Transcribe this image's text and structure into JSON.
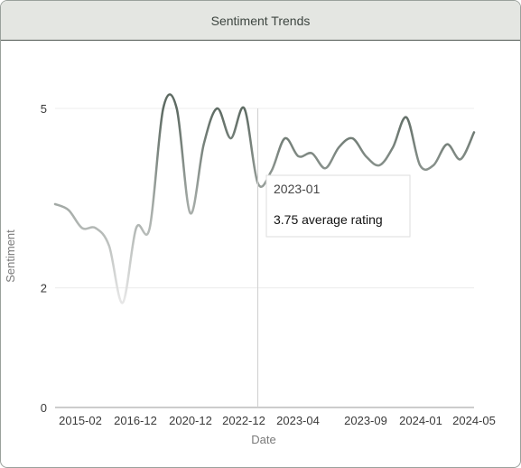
{
  "card": {
    "title": "Sentiment Trends"
  },
  "chart_data": {
    "type": "line",
    "title": "Sentiment Trends",
    "xlabel": "Date",
    "ylabel": "Sentiment",
    "ylim": [
      0,
      5
    ],
    "y_ticks": [
      {
        "value": 0,
        "label": "0"
      },
      {
        "value": 2,
        "label": "2"
      },
      {
        "value": 5,
        "label": "5"
      }
    ],
    "x_tick_labels": [
      "2015-02",
      "2016-12",
      "2020-12",
      "2022-12",
      "2023-04",
      "2023-09",
      "2024-01",
      "2024-05"
    ],
    "grid": true,
    "series": [
      {
        "values": [
          3.4,
          3.3,
          3.0,
          3.0,
          2.7,
          1.75,
          3.0,
          3.0,
          5.0,
          5.0,
          3.25,
          4.4,
          5.0,
          4.5,
          5.0,
          3.75,
          3.95,
          4.5,
          4.2,
          4.25,
          4.0,
          4.35,
          4.5,
          4.2,
          4.05,
          4.35,
          4.85,
          4.05,
          4.05,
          4.4,
          4.15,
          4.6
        ]
      }
    ],
    "gradient_colors": [
      "#e6e6e6",
      "#5e6b63"
    ],
    "tooltip": {
      "title": "2023-01",
      "body": "3.75 average rating"
    }
  }
}
